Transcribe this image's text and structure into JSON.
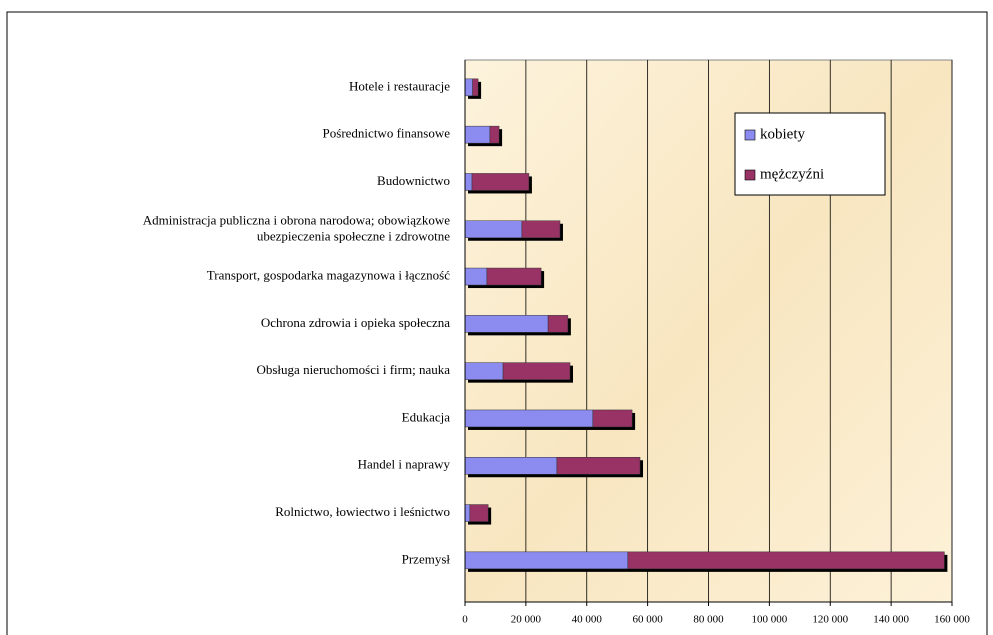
{
  "chart_data": {
    "type": "stacked_barh",
    "categories": [
      "Hotele i restauracje",
      "Pośrednictwo finansowe",
      "Budownictwo",
      "Administracja publiczna i obrona narodowa; obowiązkowe\nubezpieczenia społeczne i zdrowotne",
      "Transport, gospodarka magazynowa i łączność",
      "Ochrona zdrowia i opieka społeczna",
      "Obsługa nieruchomości i firm; nauka",
      "Edukacja",
      "Handel i naprawy",
      "Rolnictwo, łowiectwo i leśnictwo",
      "Przemysł"
    ],
    "series": [
      {
        "name": "kobiety",
        "color": "#8c8cf0",
        "values": [
          2500,
          8200,
          2300,
          18700,
          7200,
          27300,
          12500,
          42000,
          30200,
          1600,
          53500
        ]
      },
      {
        "name": "mężczyźni",
        "color": "#993366",
        "values": [
          1800,
          3000,
          18700,
          12500,
          17800,
          6500,
          22000,
          12900,
          27300,
          6000,
          104000
        ]
      }
    ],
    "xlim": [
      0,
      160000
    ],
    "xticks": [
      0,
      {
        "value": 20000,
        "label": "20 000"
      },
      {
        "value": 40000,
        "label": "40 000"
      },
      {
        "value": 60000,
        "label": "60 000"
      },
      {
        "value": 80000,
        "label": "80 000"
      },
      {
        "value": 100000,
        "label": "100 000"
      },
      {
        "value": 120000,
        "label": "120 000"
      },
      {
        "value": 140000,
        "label": "140 000"
      },
      {
        "value": 160000,
        "label": "160 000"
      }
    ],
    "grid": true,
    "legend": "upper right"
  }
}
